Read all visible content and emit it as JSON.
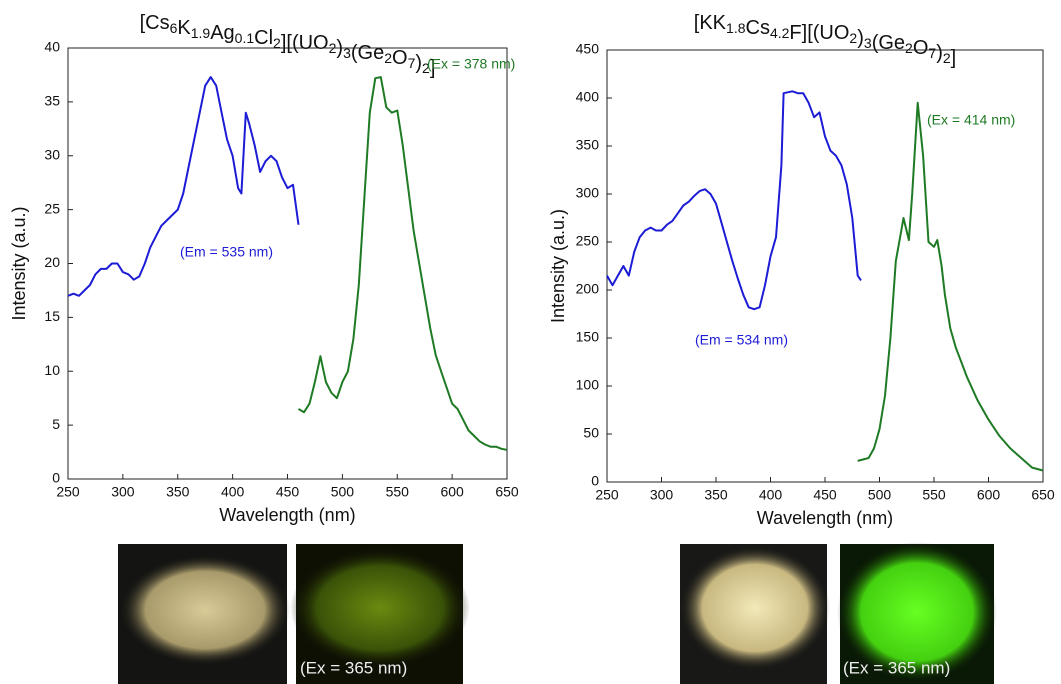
{
  "chart_data": [
    {
      "type": "line",
      "title": "[Cs6K1.9Ag0.1Cl2][(UO2)3(Ge2O7)2]",
      "x_label": "Wavelength (nm)",
      "y_label": "Intensity (a.u.)",
      "xlim": [
        250,
        650
      ],
      "xticks": [
        250,
        300,
        350,
        400,
        450,
        500,
        550,
        600,
        650
      ],
      "ylim": [
        0,
        40
      ],
      "yticks": [
        0,
        5,
        10,
        15,
        20,
        25,
        30,
        35,
        40
      ],
      "photo_caption": "(Ex = 365 nm)",
      "series": [
        {
          "name": "(Em = 535 nm)",
          "color": "#1c1cd6",
          "x": [
            250,
            255,
            260,
            265,
            270,
            275,
            280,
            285,
            290,
            295,
            300,
            305,
            310,
            315,
            320,
            325,
            330,
            335,
            340,
            345,
            350,
            355,
            360,
            365,
            370,
            375,
            380,
            385,
            390,
            395,
            400,
            405,
            408,
            412,
            415,
            420,
            425,
            430,
            435,
            440,
            445,
            450,
            455,
            460
          ],
          "values": [
            17,
            17.2,
            17,
            17.5,
            18,
            19,
            19.5,
            19.5,
            20,
            20,
            19.2,
            19,
            18.5,
            18.8,
            20,
            21.5,
            22.5,
            23.5,
            24,
            24.5,
            25,
            26.5,
            29,
            31.5,
            34,
            36.5,
            37.3,
            36.5,
            34,
            31.5,
            30,
            27,
            26.5,
            34,
            33,
            31,
            28.5,
            29.5,
            30,
            29.5,
            28,
            27,
            27.3,
            23.6
          ]
        },
        {
          "name": "(Ex = 378 nm)",
          "color": "#1f7a24",
          "x": [
            460,
            465,
            470,
            475,
            480,
            485,
            490,
            495,
            500,
            505,
            510,
            515,
            520,
            525,
            530,
            535,
            540,
            545,
            550,
            555,
            560,
            565,
            570,
            575,
            580,
            585,
            590,
            595,
            600,
            605,
            610,
            615,
            620,
            625,
            630,
            635,
            640,
            645,
            650
          ],
          "values": [
            6.5,
            6.2,
            7,
            9,
            11.4,
            9,
            8,
            7.5,
            9,
            10,
            13,
            18,
            26,
            34,
            37.2,
            37.3,
            34.5,
            34,
            34.2,
            31,
            27,
            23,
            20,
            17,
            14,
            11.5,
            10,
            8.5,
            7,
            6.5,
            5.5,
            4.5,
            4,
            3.5,
            3.2,
            3,
            3,
            2.8,
            2.7
          ]
        }
      ]
    },
    {
      "type": "line",
      "title": "[KK1.8Cs4.2F][(UO2)3(Ge2O7)2]",
      "x_label": "Wavelength (nm)",
      "y_label": "Intensity (a.u.)",
      "xlim": [
        250,
        650
      ],
      "xticks": [
        250,
        300,
        350,
        400,
        450,
        500,
        550,
        600,
        650
      ],
      "ylim": [
        0,
        450
      ],
      "yticks": [
        0,
        50,
        100,
        150,
        200,
        250,
        300,
        350,
        400,
        450
      ],
      "photo_caption": "(Ex = 365 nm)",
      "series": [
        {
          "name": "(Em = 534 nm)",
          "color": "#1c1cd6",
          "x": [
            250,
            255,
            260,
            265,
            270,
            275,
            280,
            285,
            290,
            295,
            300,
            305,
            310,
            315,
            320,
            325,
            330,
            335,
            340,
            345,
            350,
            355,
            360,
            365,
            370,
            375,
            380,
            385,
            390,
            395,
            400,
            405,
            410,
            412,
            420,
            425,
            430,
            435,
            440,
            445,
            450,
            455,
            460,
            465,
            470,
            475,
            480,
            483
          ],
          "values": [
            215,
            205,
            215,
            225,
            215,
            240,
            255,
            262,
            265,
            262,
            262,
            268,
            272,
            280,
            288,
            292,
            298,
            303,
            305,
            300,
            290,
            270,
            250,
            230,
            212,
            195,
            182,
            180,
            182,
            205,
            235,
            255,
            330,
            405,
            407,
            405,
            405,
            395,
            380,
            385,
            360,
            345,
            340,
            330,
            310,
            275,
            215,
            210
          ]
        },
        {
          "name": "(Ex = 414 nm)",
          "color": "#1f7a24",
          "x": [
            480,
            490,
            495,
            500,
            505,
            510,
            515,
            520,
            522,
            527,
            530,
            535,
            540,
            545,
            550,
            553,
            557,
            560,
            565,
            570,
            575,
            580,
            590,
            600,
            610,
            620,
            630,
            640,
            650
          ],
          "values": [
            22,
            25,
            35,
            55,
            90,
            150,
            230,
            262,
            275,
            252,
            300,
            395,
            340,
            250,
            245,
            252,
            225,
            195,
            160,
            140,
            125,
            110,
            85,
            65,
            48,
            35,
            25,
            15,
            12
          ]
        }
      ]
    }
  ]
}
